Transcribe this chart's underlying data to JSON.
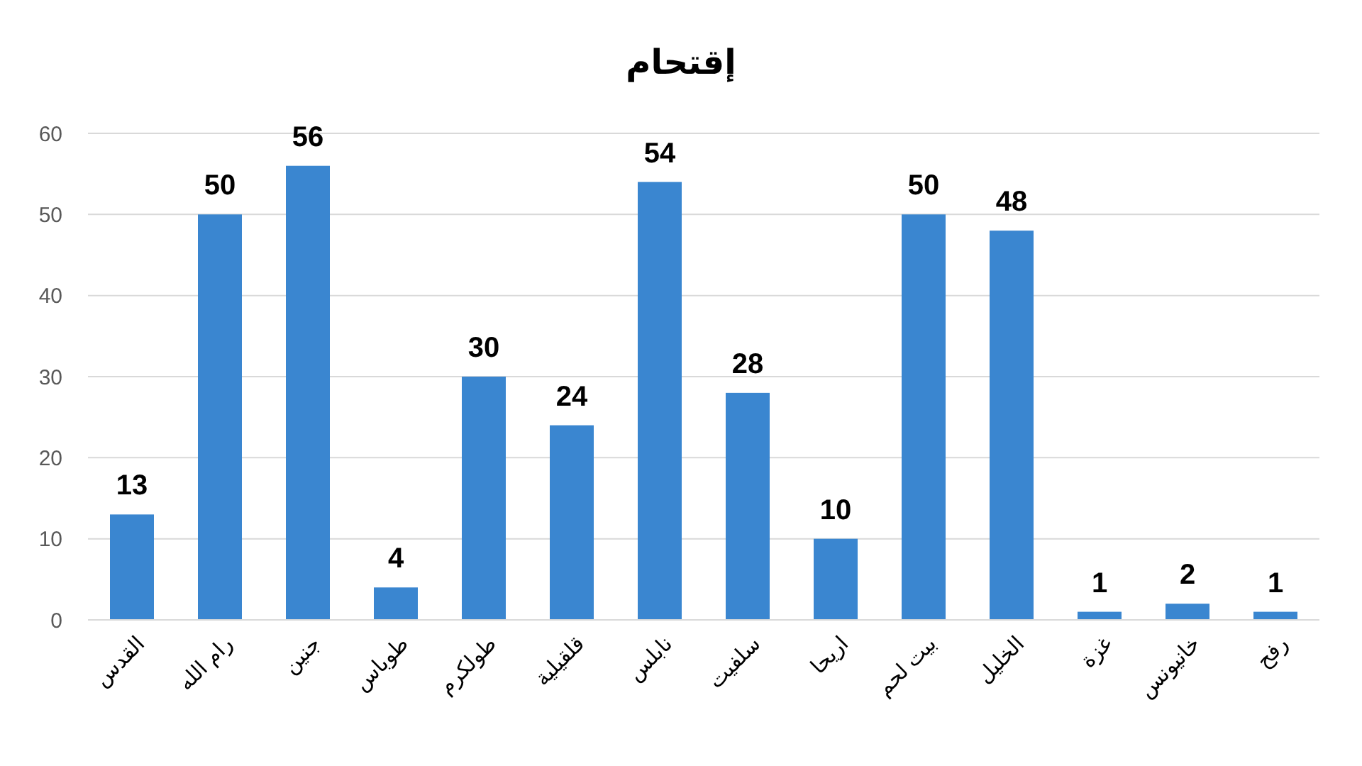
{
  "chart_data": {
    "type": "bar",
    "title": "إقتحام",
    "categories": [
      "القدس",
      "رام الله",
      "جنين",
      "طوباس",
      "طولكرم",
      "قلقيلية",
      "نابلس",
      "سلفيت",
      "اريحا",
      "بيت لحم",
      "الخليل",
      "غزة",
      "خانيونس",
      "رفح"
    ],
    "values": [
      13,
      50,
      56,
      4,
      30,
      24,
      54,
      28,
      10,
      50,
      48,
      1,
      2,
      1
    ],
    "color": "#3a86d0",
    "ylim": [
      0,
      60
    ],
    "yticks": [
      0,
      10,
      20,
      30,
      40,
      50,
      60
    ],
    "grid": "y",
    "data_labels": true
  }
}
